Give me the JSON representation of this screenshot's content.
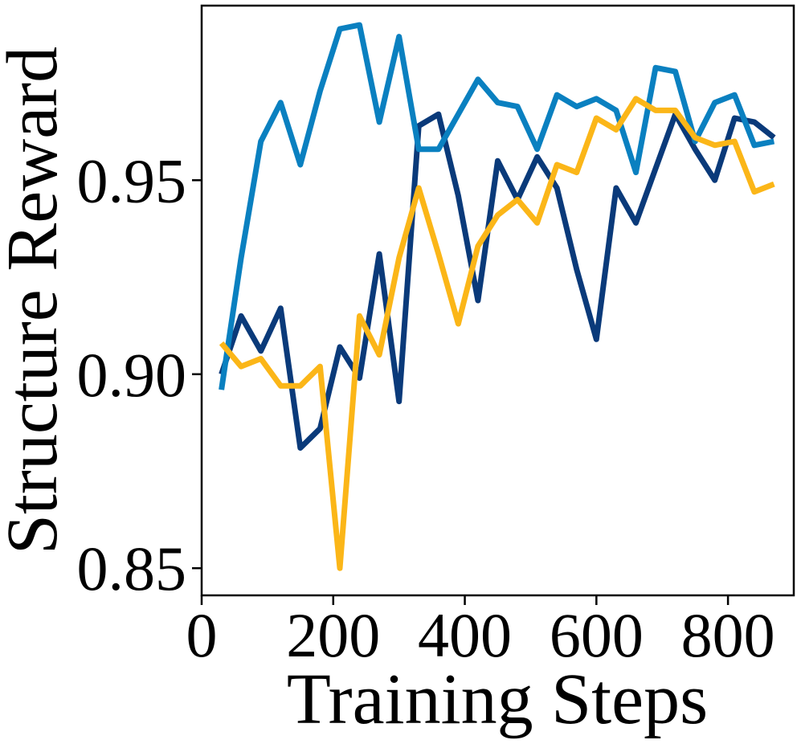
{
  "chart_data": {
    "type": "line",
    "title": "",
    "xlabel": "Training Steps",
    "ylabel": "Structure Reward",
    "xlim": [
      0,
      900
    ],
    "ylim": [
      0.843,
      0.995
    ],
    "xticks": [
      0,
      200,
      400,
      600,
      800
    ],
    "xtick_labels": [
      "0",
      "200",
      "400",
      "600",
      "800"
    ],
    "yticks": [
      0.85,
      0.9,
      0.95
    ],
    "ytick_labels": [
      "0.85",
      "0.90",
      "0.95"
    ],
    "grid": false,
    "legend": "none",
    "x": [
      30,
      60,
      90,
      120,
      150,
      180,
      210,
      240,
      270,
      300,
      330,
      360,
      390,
      420,
      450,
      480,
      510,
      540,
      570,
      600,
      630,
      660,
      690,
      720,
      750,
      780,
      810,
      840,
      870
    ],
    "series": [
      {
        "color": "#0a3a7a",
        "values": [
          0.9,
          0.915,
          0.906,
          0.917,
          0.881,
          0.886,
          0.907,
          0.899,
          0.931,
          0.893,
          0.964,
          0.967,
          0.946,
          0.919,
          0.955,
          0.945,
          0.956,
          0.948,
          0.927,
          0.909,
          0.948,
          0.939,
          0.953,
          0.967,
          0.958,
          0.95,
          0.966,
          0.965,
          0.961
        ]
      },
      {
        "color": "#0a80c0",
        "values": [
          0.896,
          0.93,
          0.96,
          0.97,
          0.954,
          0.973,
          0.989,
          0.99,
          0.965,
          0.987,
          0.958,
          0.958,
          0.967,
          0.976,
          0.97,
          0.969,
          0.958,
          0.972,
          0.969,
          0.971,
          0.968,
          0.952,
          0.979,
          0.978,
          0.96,
          0.97,
          0.972,
          0.959,
          0.96
        ]
      },
      {
        "color": "#fbb618",
        "values": [
          0.908,
          0.902,
          0.904,
          0.897,
          0.897,
          0.902,
          0.85,
          0.915,
          0.905,
          0.93,
          0.948,
          0.931,
          0.913,
          0.933,
          0.941,
          0.945,
          0.939,
          0.954,
          0.952,
          0.966,
          0.963,
          0.971,
          0.968,
          0.968,
          0.961,
          0.959,
          0.96,
          0.947,
          0.949
        ]
      }
    ]
  }
}
